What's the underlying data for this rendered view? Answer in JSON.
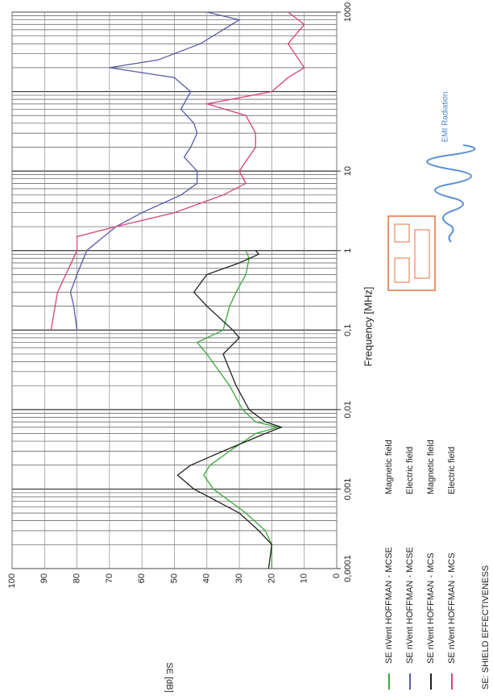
{
  "chart_data": {
    "type": "line",
    "xlabel": "Frequency [MHz]",
    "ylabel": "SE [dB]",
    "note": "SE: SHIELD EFFECTIVENESS",
    "annotation": "EMI Radiation",
    "log_x": true,
    "grid": true,
    "xlim": [
      0.0001,
      1000
    ],
    "xticks": [
      {
        "value": 0.0001,
        "label": "0,0001"
      },
      {
        "value": 0.001,
        "label": "0,001"
      },
      {
        "value": 0.01,
        "label": "0,01"
      },
      {
        "value": 0.1,
        "label": "0,1"
      },
      1,
      10,
      1000
    ],
    "ylim": [
      0,
      100
    ],
    "yticks": [
      0,
      10,
      20,
      30,
      40,
      50,
      60,
      70,
      80,
      90,
      100
    ],
    "series": [
      {
        "name": "SE nVent HOFFMAN - MCSE",
        "field": "Magnetic field",
        "color": "#3aa83a",
        "x": [
          0.0001,
          0.0002,
          0.0003,
          0.0005,
          0.001,
          0.0015,
          0.002,
          0.003,
          0.005,
          0.006,
          0.007,
          0.01,
          0.02,
          0.05,
          0.07,
          0.1,
          0.2,
          0.3,
          0.5,
          0.8,
          1
        ],
        "values": [
          20,
          20,
          22,
          28,
          38,
          41,
          39,
          33,
          25,
          18,
          25,
          29,
          33,
          40,
          43,
          35,
          33,
          31,
          28,
          27,
          28
        ]
      },
      {
        "name": "SE nVent HOFFMAN - MCSE",
        "field": "Electric field",
        "color": "#5a5aa8",
        "x": [
          0.1,
          0.2,
          0.3,
          0.5,
          1,
          2,
          3,
          5,
          7,
          10,
          15,
          20,
          30,
          40,
          60,
          100,
          150,
          200,
          250,
          400,
          600,
          800,
          1000
        ],
        "values": [
          80,
          81,
          82,
          80,
          77,
          68,
          60,
          48,
          43,
          43,
          47,
          45,
          43,
          44,
          48,
          45,
          50,
          70,
          55,
          42,
          35,
          30,
          40
        ]
      },
      {
        "name": "SE nVent HOFFMAN - MCS",
        "field": "Magnetic field",
        "color": "#222222",
        "x": [
          0.0001,
          0.0002,
          0.0003,
          0.0005,
          0.001,
          0.0015,
          0.002,
          0.003,
          0.005,
          0.006,
          0.007,
          0.01,
          0.02,
          0.05,
          0.08,
          0.1,
          0.2,
          0.3,
          0.5,
          0.7,
          0.9,
          1
        ],
        "values": [
          21,
          20,
          24,
          30,
          44,
          49,
          45,
          35,
          22,
          17,
          22,
          27,
          31,
          35,
          30,
          32,
          40,
          44,
          40,
          30,
          24,
          25
        ]
      },
      {
        "name": "SE nVent HOFFMAN - MCS",
        "field": "Electric field",
        "color": "#d9437a",
        "x": [
          0.1,
          0.3,
          1,
          1.5,
          2,
          3,
          5,
          7,
          10,
          20,
          30,
          50,
          70,
          100,
          150,
          200,
          400,
          700,
          1000
        ],
        "values": [
          88,
          86,
          80,
          80,
          68,
          50,
          35,
          28,
          30,
          25,
          25,
          28,
          40,
          20,
          15,
          10,
          15,
          10,
          15
        ]
      }
    ]
  }
}
